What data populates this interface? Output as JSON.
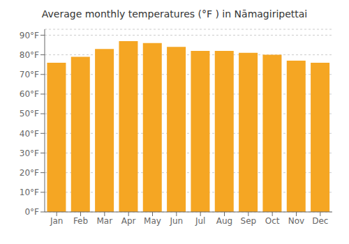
{
  "chart_data": {
    "type": "bar",
    "title": "Average monthly temperatures (°F ) in Nāmagiripettai",
    "categories": [
      "Jan",
      "Feb",
      "Mar",
      "Apr",
      "May",
      "Jun",
      "Jul",
      "Aug",
      "Sep",
      "Oct",
      "Nov",
      "Dec"
    ],
    "values": [
      76,
      79,
      83,
      87,
      86,
      84,
      82,
      82,
      81,
      80,
      77,
      76
    ],
    "color": "#F5A623",
    "ylim": [
      0,
      93
    ],
    "yticks": [
      {
        "value": 0,
        "label": "0°F"
      },
      {
        "value": 10,
        "label": "10°F"
      },
      {
        "value": 20,
        "label": "20°F"
      },
      {
        "value": 30,
        "label": "30°F"
      },
      {
        "value": 40,
        "label": "40°F"
      },
      {
        "value": 50,
        "label": "50°F"
      },
      {
        "value": 60,
        "label": "60°F"
      },
      {
        "value": 70,
        "label": "70°F"
      },
      {
        "value": 80,
        "label": "80°F"
      },
      {
        "value": 90,
        "label": "90°F"
      }
    ],
    "grid": true
  }
}
